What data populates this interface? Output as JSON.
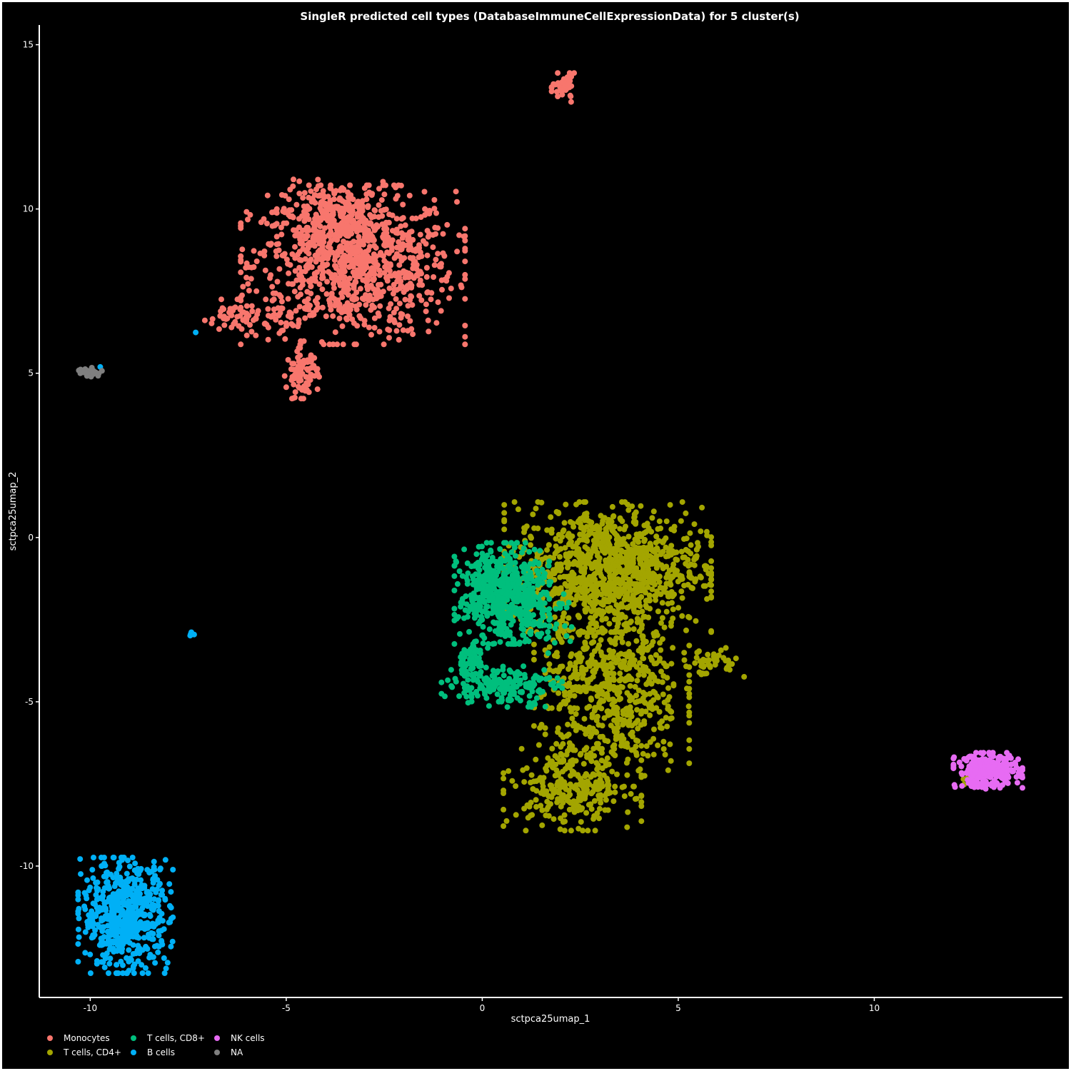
{
  "chart_data": {
    "type": "scatter",
    "title": "SingleR predicted cell types (DatabaseImmuneCellExpressionData) for 5 cluster(s)",
    "xlabel": "sctpca25umap_1",
    "ylabel": "sctpca25umap_2",
    "xlim": [
      -11.3,
      14.8
    ],
    "ylim": [
      -14.0,
      15.6
    ],
    "x_ticks": [
      -10,
      -5,
      0,
      5,
      10
    ],
    "x_tick_labels": [
      "-10",
      "-5",
      "0",
      "5",
      "10"
    ],
    "y_ticks": [
      -10,
      -5,
      0,
      5,
      10,
      15
    ],
    "y_tick_labels": [
      "-10",
      "-5",
      "0",
      "5",
      "10",
      "15"
    ],
    "background": "#000000",
    "grid": false,
    "legend_position": "bottom-left",
    "series": [
      {
        "name": "Monocytes",
        "color": "#F8766D",
        "clusters": [
          {
            "center": [
              -3.3,
              8.3
            ],
            "spread": [
              1.3,
              1.1
            ],
            "n": 900
          },
          {
            "center": [
              -3.7,
              9.8
            ],
            "spread": [
              0.7,
              0.5
            ],
            "n": 200
          },
          {
            "center": [
              -4.6,
              5.0
            ],
            "spread": [
              0.2,
              0.35
            ],
            "n": 90
          },
          {
            "center": [
              -6.0,
              6.7
            ],
            "spread": [
              0.6,
              0.25
            ],
            "n": 70
          },
          {
            "center": [
              2.1,
              13.7
            ],
            "spread": [
              0.15,
              0.2
            ],
            "n": 40
          }
        ]
      },
      {
        "name": "T cells, CD4+",
        "color": "#A3A500",
        "clusters": [
          {
            "center": [
              3.2,
              -0.9
            ],
            "spread": [
              1.2,
              0.9
            ],
            "n": 1000
          },
          {
            "center": [
              3.3,
              -4.5
            ],
            "spread": [
              0.9,
              1.4
            ],
            "n": 650
          },
          {
            "center": [
              2.3,
              -7.6
            ],
            "spread": [
              0.8,
              0.6
            ],
            "n": 280
          },
          {
            "center": [
              5.8,
              -3.8
            ],
            "spread": [
              0.4,
              0.2
            ],
            "n": 45
          },
          {
            "center": [
              12.3,
              -7.4
            ],
            "spread": [
              0.05,
              0.1
            ],
            "n": 3
          }
        ]
      },
      {
        "name": "T cells, CD8+",
        "color": "#00BF7D",
        "clusters": [
          {
            "center": [
              0.5,
              -1.7
            ],
            "spread": [
              0.55,
              0.7
            ],
            "n": 500
          },
          {
            "center": [
              1.4,
              -2.2
            ],
            "spread": [
              0.4,
              0.6
            ],
            "n": 90
          },
          {
            "center": [
              0.5,
              -4.5
            ],
            "spread": [
              0.7,
              0.3
            ],
            "n": 180
          },
          {
            "center": [
              -0.3,
              -3.7
            ],
            "spread": [
              0.2,
              0.25
            ],
            "n": 60
          }
        ]
      },
      {
        "name": "B cells",
        "color": "#00B0F6",
        "clusters": [
          {
            "center": [
              -9.1,
              -11.5
            ],
            "spread": [
              0.55,
              0.8
            ],
            "n": 600
          },
          {
            "center": [
              -7.4,
              -2.95
            ],
            "spread": [
              0.05,
              0.05
            ],
            "n": 6
          },
          {
            "center": [
              -9.7,
              5.2
            ],
            "spread": [
              0.02,
              0.02
            ],
            "n": 1
          },
          {
            "center": [
              -7.3,
              6.2
            ],
            "spread": [
              0.02,
              0.02
            ],
            "n": 1
          }
        ]
      },
      {
        "name": "NK cells",
        "color": "#E76BF3",
        "clusters": [
          {
            "center": [
              12.9,
              -7.1
            ],
            "spread": [
              0.4,
              0.25
            ],
            "n": 300
          }
        ]
      },
      {
        "name": "NA",
        "color": "#7F7F7F",
        "clusters": [
          {
            "center": [
              -10.0,
              5.05
            ],
            "spread": [
              0.15,
              0.07
            ],
            "n": 20
          }
        ]
      }
    ]
  }
}
